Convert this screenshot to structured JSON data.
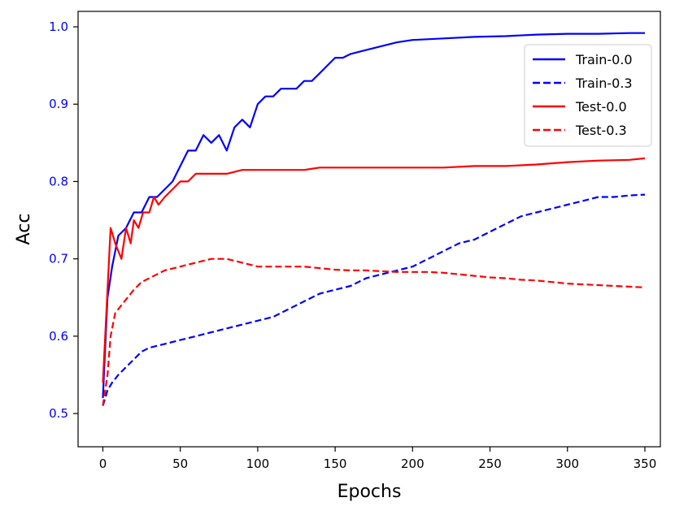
{
  "chart_data": {
    "type": "line",
    "title": "",
    "xlabel": "Epochs",
    "ylabel": "Acc",
    "xlim": [
      -16,
      360
    ],
    "ylim": [
      0.457,
      1.02
    ],
    "xticks": [
      0,
      50,
      100,
      150,
      200,
      250,
      300,
      350
    ],
    "yticks": [
      0.5,
      0.6,
      0.7,
      0.8,
      0.9,
      1.0
    ],
    "xtick_labels": [
      "0",
      "50",
      "100",
      "150",
      "200",
      "250",
      "300",
      "350"
    ],
    "ytick_labels": [
      "0.5",
      "0.6",
      "0.7",
      "0.8",
      "0.9",
      "1.0"
    ],
    "ytick_color": "#0000ff",
    "grid": false,
    "legend_position": "top-right",
    "series": [
      {
        "name": "Train-0.0",
        "color": "#0000ff",
        "dash": "solid",
        "x": [
          0,
          3,
          6,
          10,
          15,
          20,
          25,
          30,
          35,
          40,
          45,
          50,
          55,
          60,
          65,
          70,
          75,
          80,
          85,
          90,
          95,
          100,
          105,
          110,
          115,
          120,
          125,
          130,
          135,
          140,
          145,
          150,
          155,
          160,
          170,
          180,
          190,
          200,
          220,
          240,
          260,
          280,
          300,
          320,
          340,
          350
        ],
        "y": [
          0.52,
          0.65,
          0.69,
          0.73,
          0.74,
          0.76,
          0.76,
          0.78,
          0.78,
          0.79,
          0.8,
          0.82,
          0.84,
          0.84,
          0.86,
          0.85,
          0.86,
          0.84,
          0.87,
          0.88,
          0.87,
          0.9,
          0.91,
          0.91,
          0.92,
          0.92,
          0.92,
          0.93,
          0.93,
          0.94,
          0.95,
          0.96,
          0.96,
          0.965,
          0.97,
          0.975,
          0.98,
          0.983,
          0.985,
          0.987,
          0.988,
          0.99,
          0.991,
          0.991,
          0.992,
          0.992
        ]
      },
      {
        "name": "Train-0.3",
        "color": "#0000ff",
        "dash": "dashed",
        "x": [
          0,
          3,
          6,
          10,
          15,
          20,
          25,
          30,
          40,
          50,
          60,
          70,
          80,
          90,
          100,
          110,
          120,
          130,
          140,
          150,
          160,
          170,
          180,
          190,
          200,
          210,
          220,
          230,
          240,
          250,
          260,
          270,
          280,
          290,
          300,
          310,
          320,
          330,
          340,
          350
        ],
        "y": [
          0.51,
          0.53,
          0.54,
          0.55,
          0.56,
          0.57,
          0.58,
          0.585,
          0.59,
          0.595,
          0.6,
          0.605,
          0.61,
          0.615,
          0.62,
          0.625,
          0.635,
          0.645,
          0.655,
          0.66,
          0.665,
          0.675,
          0.68,
          0.685,
          0.69,
          0.7,
          0.71,
          0.72,
          0.725,
          0.735,
          0.745,
          0.755,
          0.76,
          0.765,
          0.77,
          0.775,
          0.78,
          0.78,
          0.782,
          0.783
        ]
      },
      {
        "name": "Test-0.0",
        "color": "#ff0000",
        "dash": "solid",
        "x": [
          0,
          3,
          5,
          8,
          12,
          15,
          18,
          20,
          23,
          26,
          30,
          33,
          36,
          40,
          45,
          50,
          55,
          60,
          70,
          80,
          90,
          100,
          110,
          120,
          130,
          140,
          150,
          160,
          170,
          180,
          190,
          200,
          220,
          240,
          260,
          280,
          300,
          320,
          340,
          350
        ],
        "y": [
          0.54,
          0.66,
          0.74,
          0.72,
          0.7,
          0.74,
          0.72,
          0.75,
          0.74,
          0.76,
          0.76,
          0.78,
          0.77,
          0.78,
          0.79,
          0.8,
          0.8,
          0.81,
          0.81,
          0.81,
          0.815,
          0.815,
          0.815,
          0.815,
          0.815,
          0.818,
          0.818,
          0.818,
          0.818,
          0.818,
          0.818,
          0.818,
          0.818,
          0.82,
          0.82,
          0.822,
          0.825,
          0.827,
          0.828,
          0.83
        ]
      },
      {
        "name": "Test-0.3",
        "color": "#ff0000",
        "dash": "dashed",
        "x": [
          0,
          3,
          5,
          8,
          12,
          16,
          20,
          25,
          30,
          35,
          40,
          50,
          60,
          70,
          80,
          90,
          100,
          110,
          120,
          130,
          140,
          150,
          160,
          170,
          180,
          190,
          200,
          210,
          220,
          230,
          240,
          250,
          260,
          270,
          280,
          290,
          300,
          310,
          320,
          330,
          340,
          350
        ],
        "y": [
          0.51,
          0.55,
          0.6,
          0.63,
          0.64,
          0.65,
          0.66,
          0.67,
          0.675,
          0.68,
          0.685,
          0.69,
          0.695,
          0.7,
          0.7,
          0.695,
          0.69,
          0.69,
          0.69,
          0.69,
          0.688,
          0.686,
          0.685,
          0.685,
          0.684,
          0.683,
          0.683,
          0.683,
          0.682,
          0.68,
          0.678,
          0.676,
          0.675,
          0.673,
          0.672,
          0.67,
          0.668,
          0.667,
          0.666,
          0.665,
          0.664,
          0.663
        ]
      }
    ]
  }
}
